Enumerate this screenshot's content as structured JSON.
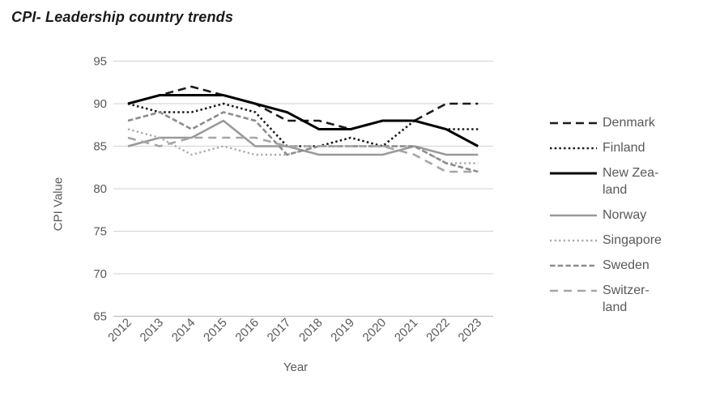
{
  "chart_data": {
    "type": "line",
    "title": "CPI- Leadership country trends",
    "xlabel": "Year",
    "ylabel": "CPI Value",
    "x": [
      2012,
      2013,
      2014,
      2015,
      2016,
      2017,
      2018,
      2019,
      2020,
      2021,
      2022,
      2023
    ],
    "ylim": [
      65,
      95
    ],
    "yticks": [
      65,
      70,
      75,
      80,
      85,
      90,
      95
    ],
    "grid": "horizontal",
    "legend_position": "right",
    "series": [
      {
        "name": "Denmark",
        "legend_label": "Denmark",
        "color": "#1a1a1a",
        "dash": "10 6",
        "width": 2.6,
        "values": [
          90,
          91,
          92,
          91,
          90,
          88,
          88,
          87,
          88,
          88,
          90,
          90
        ]
      },
      {
        "name": "Finland",
        "legend_label": "Finland",
        "color": "#1a1a1a",
        "dash": "2.5 3.2",
        "width": 2.6,
        "values": [
          90,
          89,
          89,
          90,
          89,
          85,
          85,
          86,
          85,
          88,
          87,
          87
        ]
      },
      {
        "name": "New Zealand",
        "legend_label": "New Zea-\nland",
        "color": "#000000",
        "dash": "",
        "width": 3.0,
        "values": [
          90,
          91,
          91,
          91,
          90,
          89,
          87,
          87,
          88,
          88,
          87,
          85
        ]
      },
      {
        "name": "Norway",
        "legend_label": "Norway",
        "color": "#999999",
        "dash": "",
        "width": 2.6,
        "values": [
          85,
          86,
          86,
          88,
          85,
          85,
          84,
          84,
          84,
          85,
          84,
          84
        ]
      },
      {
        "name": "Singapore",
        "legend_label": "Singapore",
        "color": "#a8a8a8",
        "dash": "2.2 3.4",
        "width": 2.4,
        "values": [
          87,
          86,
          84,
          85,
          84,
          84,
          85,
          85,
          85,
          85,
          83,
          83
        ]
      },
      {
        "name": "Sweden",
        "legend_label": "Sweden",
        "color": "#8c8c8c",
        "dash": "6.5 3.2",
        "width": 2.6,
        "values": [
          88,
          89,
          87,
          89,
          88,
          84,
          85,
          85,
          85,
          85,
          83,
          82
        ]
      },
      {
        "name": "Switzerland",
        "legend_label": "Switzer-\nland",
        "color": "#a6a6a6",
        "dash": "10 7",
        "width": 2.6,
        "values": [
          86,
          85,
          86,
          86,
          86,
          85,
          85,
          85,
          85,
          84,
          82,
          82
        ]
      }
    ],
    "colors": {
      "gridline": "#d9d9d9",
      "axis_line": "#bfbfbf",
      "tick_text": "#595959",
      "title_text": "#1a1a1a",
      "background": "#ffffff"
    }
  }
}
